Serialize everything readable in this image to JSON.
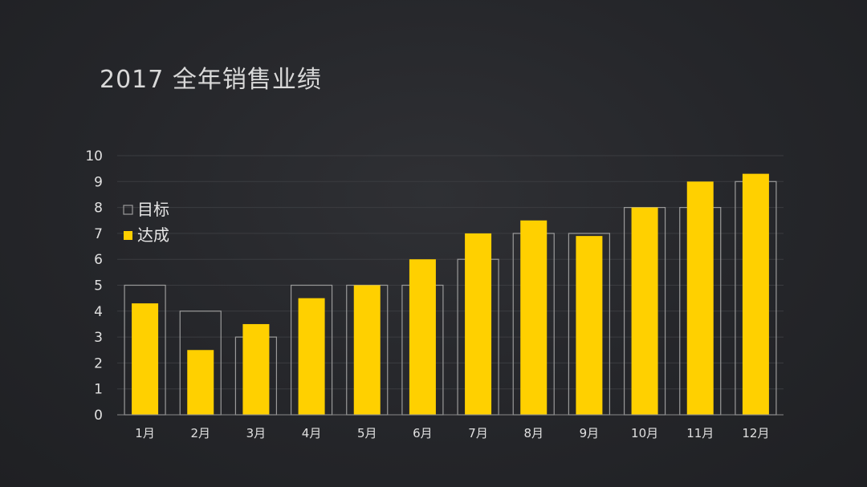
{
  "chart_data": {
    "type": "bar",
    "title": "2017 全年销售业绩",
    "categories": [
      "1月",
      "2月",
      "3月",
      "4月",
      "5月",
      "6月",
      "7月",
      "8月",
      "9月",
      "10月",
      "11月",
      "12月"
    ],
    "series": [
      {
        "name": "目标",
        "style": "outline",
        "color": "#9a9a9a",
        "values": [
          5,
          4,
          3,
          5,
          5,
          5,
          6,
          7,
          7,
          8,
          8,
          9
        ]
      },
      {
        "name": "达成",
        "style": "filled",
        "color": "#ffd000",
        "values": [
          4.3,
          2.5,
          3.5,
          4.5,
          5,
          6,
          7,
          7.5,
          6.9,
          8,
          9,
          9.3
        ]
      }
    ],
    "ylim": [
      0,
      10
    ],
    "yticks": [
      0,
      1,
      2,
      3,
      4,
      5,
      6,
      7,
      8,
      9,
      10
    ],
    "xlabel": "",
    "ylabel": "",
    "grid": true,
    "legend": "top-left",
    "background": "#26272b"
  }
}
